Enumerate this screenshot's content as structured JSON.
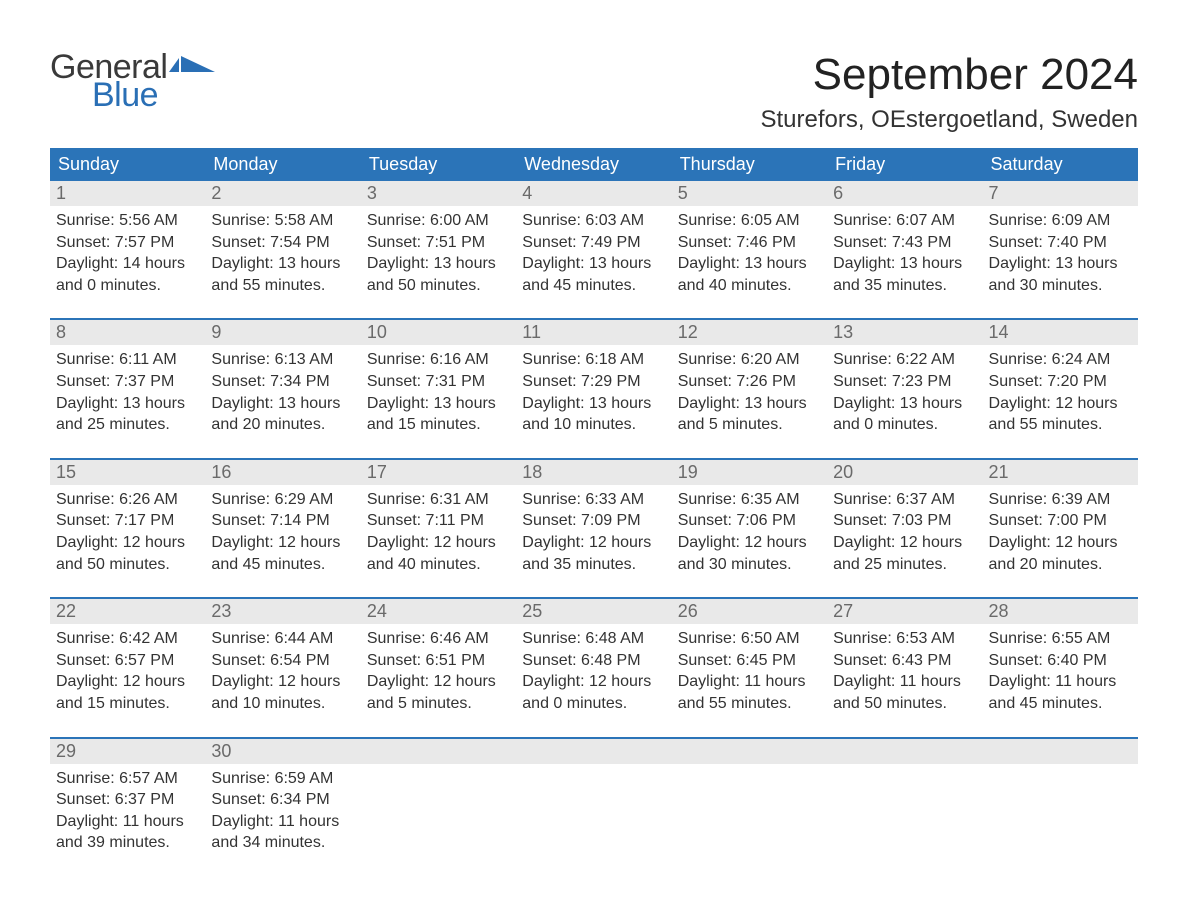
{
  "brand": {
    "word1": "General",
    "word2": "Blue",
    "word1_color": "#3a3a3a",
    "word2_color": "#2a6fb5",
    "flag_color": "#2a6fb5",
    "font_size": 34
  },
  "title": {
    "month_year": "September 2024",
    "location": "Sturefors, OEstergoetland, Sweden",
    "title_fontsize": 44,
    "location_fontsize": 24,
    "title_color": "#222222",
    "location_color": "#333333"
  },
  "calendar": {
    "header_bg": "#2b74b8",
    "header_text_color": "#ffffff",
    "week_divider_color": "#2b74b8",
    "daynum_bg": "#e9e9e9",
    "daynum_color": "#6a6a6a",
    "body_text_color": "#333333",
    "body_fontsize": 16,
    "days_of_week": [
      "Sunday",
      "Monday",
      "Tuesday",
      "Wednesday",
      "Thursday",
      "Friday",
      "Saturday"
    ],
    "weeks": [
      [
        {
          "n": "1",
          "sunrise": "Sunrise: 5:56 AM",
          "sunset": "Sunset: 7:57 PM",
          "day1": "Daylight: 14 hours",
          "day2": "and 0 minutes."
        },
        {
          "n": "2",
          "sunrise": "Sunrise: 5:58 AM",
          "sunset": "Sunset: 7:54 PM",
          "day1": "Daylight: 13 hours",
          "day2": "and 55 minutes."
        },
        {
          "n": "3",
          "sunrise": "Sunrise: 6:00 AM",
          "sunset": "Sunset: 7:51 PM",
          "day1": "Daylight: 13 hours",
          "day2": "and 50 minutes."
        },
        {
          "n": "4",
          "sunrise": "Sunrise: 6:03 AM",
          "sunset": "Sunset: 7:49 PM",
          "day1": "Daylight: 13 hours",
          "day2": "and 45 minutes."
        },
        {
          "n": "5",
          "sunrise": "Sunrise: 6:05 AM",
          "sunset": "Sunset: 7:46 PM",
          "day1": "Daylight: 13 hours",
          "day2": "and 40 minutes."
        },
        {
          "n": "6",
          "sunrise": "Sunrise: 6:07 AM",
          "sunset": "Sunset: 7:43 PM",
          "day1": "Daylight: 13 hours",
          "day2": "and 35 minutes."
        },
        {
          "n": "7",
          "sunrise": "Sunrise: 6:09 AM",
          "sunset": "Sunset: 7:40 PM",
          "day1": "Daylight: 13 hours",
          "day2": "and 30 minutes."
        }
      ],
      [
        {
          "n": "8",
          "sunrise": "Sunrise: 6:11 AM",
          "sunset": "Sunset: 7:37 PM",
          "day1": "Daylight: 13 hours",
          "day2": "and 25 minutes."
        },
        {
          "n": "9",
          "sunrise": "Sunrise: 6:13 AM",
          "sunset": "Sunset: 7:34 PM",
          "day1": "Daylight: 13 hours",
          "day2": "and 20 minutes."
        },
        {
          "n": "10",
          "sunrise": "Sunrise: 6:16 AM",
          "sunset": "Sunset: 7:31 PM",
          "day1": "Daylight: 13 hours",
          "day2": "and 15 minutes."
        },
        {
          "n": "11",
          "sunrise": "Sunrise: 6:18 AM",
          "sunset": "Sunset: 7:29 PM",
          "day1": "Daylight: 13 hours",
          "day2": "and 10 minutes."
        },
        {
          "n": "12",
          "sunrise": "Sunrise: 6:20 AM",
          "sunset": "Sunset: 7:26 PM",
          "day1": "Daylight: 13 hours",
          "day2": "and 5 minutes."
        },
        {
          "n": "13",
          "sunrise": "Sunrise: 6:22 AM",
          "sunset": "Sunset: 7:23 PM",
          "day1": "Daylight: 13 hours",
          "day2": "and 0 minutes."
        },
        {
          "n": "14",
          "sunrise": "Sunrise: 6:24 AM",
          "sunset": "Sunset: 7:20 PM",
          "day1": "Daylight: 12 hours",
          "day2": "and 55 minutes."
        }
      ],
      [
        {
          "n": "15",
          "sunrise": "Sunrise: 6:26 AM",
          "sunset": "Sunset: 7:17 PM",
          "day1": "Daylight: 12 hours",
          "day2": "and 50 minutes."
        },
        {
          "n": "16",
          "sunrise": "Sunrise: 6:29 AM",
          "sunset": "Sunset: 7:14 PM",
          "day1": "Daylight: 12 hours",
          "day2": "and 45 minutes."
        },
        {
          "n": "17",
          "sunrise": "Sunrise: 6:31 AM",
          "sunset": "Sunset: 7:11 PM",
          "day1": "Daylight: 12 hours",
          "day2": "and 40 minutes."
        },
        {
          "n": "18",
          "sunrise": "Sunrise: 6:33 AM",
          "sunset": "Sunset: 7:09 PM",
          "day1": "Daylight: 12 hours",
          "day2": "and 35 minutes."
        },
        {
          "n": "19",
          "sunrise": "Sunrise: 6:35 AM",
          "sunset": "Sunset: 7:06 PM",
          "day1": "Daylight: 12 hours",
          "day2": "and 30 minutes."
        },
        {
          "n": "20",
          "sunrise": "Sunrise: 6:37 AM",
          "sunset": "Sunset: 7:03 PM",
          "day1": "Daylight: 12 hours",
          "day2": "and 25 minutes."
        },
        {
          "n": "21",
          "sunrise": "Sunrise: 6:39 AM",
          "sunset": "Sunset: 7:00 PM",
          "day1": "Daylight: 12 hours",
          "day2": "and 20 minutes."
        }
      ],
      [
        {
          "n": "22",
          "sunrise": "Sunrise: 6:42 AM",
          "sunset": "Sunset: 6:57 PM",
          "day1": "Daylight: 12 hours",
          "day2": "and 15 minutes."
        },
        {
          "n": "23",
          "sunrise": "Sunrise: 6:44 AM",
          "sunset": "Sunset: 6:54 PM",
          "day1": "Daylight: 12 hours",
          "day2": "and 10 minutes."
        },
        {
          "n": "24",
          "sunrise": "Sunrise: 6:46 AM",
          "sunset": "Sunset: 6:51 PM",
          "day1": "Daylight: 12 hours",
          "day2": "and 5 minutes."
        },
        {
          "n": "25",
          "sunrise": "Sunrise: 6:48 AM",
          "sunset": "Sunset: 6:48 PM",
          "day1": "Daylight: 12 hours",
          "day2": "and 0 minutes."
        },
        {
          "n": "26",
          "sunrise": "Sunrise: 6:50 AM",
          "sunset": "Sunset: 6:45 PM",
          "day1": "Daylight: 11 hours",
          "day2": "and 55 minutes."
        },
        {
          "n": "27",
          "sunrise": "Sunrise: 6:53 AM",
          "sunset": "Sunset: 6:43 PM",
          "day1": "Daylight: 11 hours",
          "day2": "and 50 minutes."
        },
        {
          "n": "28",
          "sunrise": "Sunrise: 6:55 AM",
          "sunset": "Sunset: 6:40 PM",
          "day1": "Daylight: 11 hours",
          "day2": "and 45 minutes."
        }
      ],
      [
        {
          "n": "29",
          "sunrise": "Sunrise: 6:57 AM",
          "sunset": "Sunset: 6:37 PM",
          "day1": "Daylight: 11 hours",
          "day2": "and 39 minutes."
        },
        {
          "n": "30",
          "sunrise": "Sunrise: 6:59 AM",
          "sunset": "Sunset: 6:34 PM",
          "day1": "Daylight: 11 hours",
          "day2": "and 34 minutes."
        },
        {
          "empty": true
        },
        {
          "empty": true
        },
        {
          "empty": true
        },
        {
          "empty": true
        },
        {
          "empty": true
        }
      ]
    ]
  }
}
